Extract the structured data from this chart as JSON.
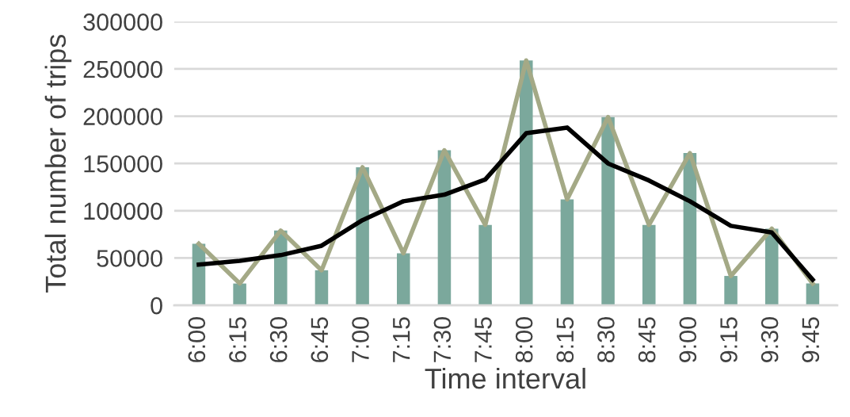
{
  "chart_data": {
    "type": "bar",
    "xlabel": "Time interval",
    "ylabel": "Total number of trips",
    "categories": [
      "6:00",
      "6:15",
      "6:30",
      "6:45",
      "7:00",
      "7:15",
      "7:30",
      "7:45",
      "8:00",
      "8:15",
      "8:30",
      "8:45",
      "9:00",
      "9:15",
      "9:30",
      "9:45"
    ],
    "series": [
      {
        "color": "#7ba89c",
        "values": [
          65000,
          23000,
          79000,
          37000,
          146000,
          55000,
          164000,
          85000,
          259000,
          112000,
          199000,
          85000,
          161000,
          31000,
          81000,
          23000
        ]
      },
      {
        "type": "line",
        "color": "#a4a986",
        "values": [
          65000,
          23000,
          79000,
          37000,
          146000,
          55000,
          164000,
          85000,
          259000,
          112000,
          199000,
          85000,
          161000,
          31000,
          81000,
          23000
        ]
      },
      {
        "type": "line",
        "color": "#000000",
        "values": [
          43000,
          47000,
          53000,
          63000,
          90000,
          110000,
          117000,
          133000,
          182000,
          188000,
          150000,
          132000,
          110000,
          84000,
          77000,
          27000
        ]
      }
    ],
    "ylim": [
      0,
      300000
    ],
    "yticks": [
      0,
      50000,
      100000,
      150000,
      200000,
      250000,
      300000
    ],
    "grid": "y"
  }
}
